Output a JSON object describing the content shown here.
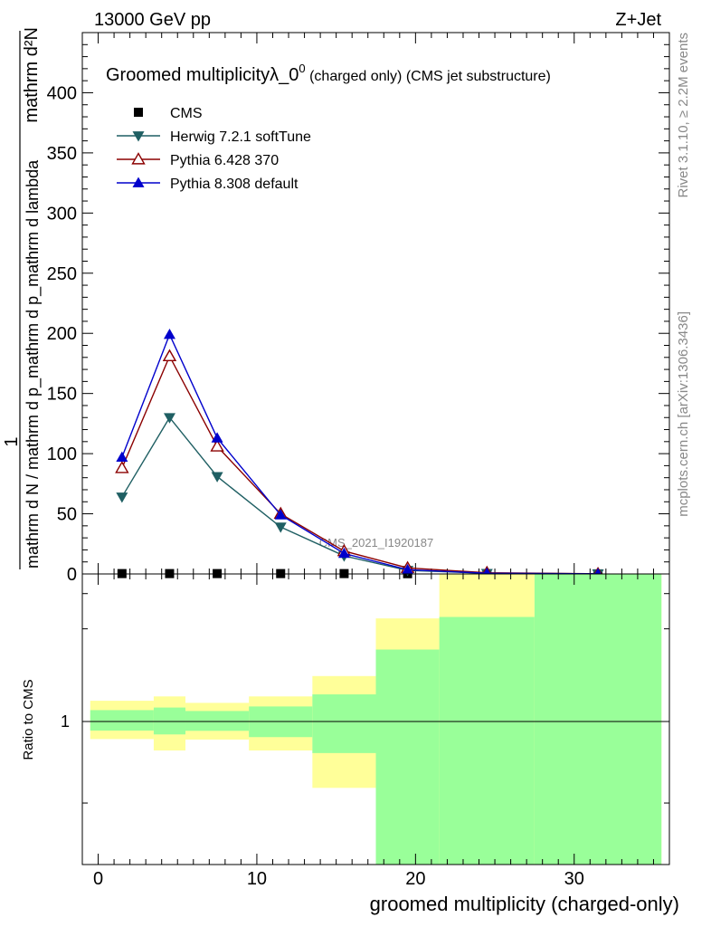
{
  "header": {
    "energy": "13000 GeV pp",
    "process": "Z+Jet"
  },
  "side_labels": {
    "rivet": "Rivet 3.1.10, ≥ 2.2M events",
    "mcplots": "mcplots.cern.ch [arXiv:1306.3436]"
  },
  "chart_data": [
    {
      "type": "line",
      "title": "Groomed multiplicityλ_0",
      "title_sup": "0",
      "title_suffix": " (charged only) (CMS jet substructure)",
      "watermark": "CMS_2021_I1920187",
      "ylabel_num": "1",
      "ylabel_den": "mathrm d N / mathrm d p_mathrm d p_mathrm d lambda",
      "ylabel_top": "mathrm d²N",
      "xlim": [
        -1,
        36
      ],
      "ylim": [
        0,
        450
      ],
      "yticks": [
        0,
        50,
        100,
        150,
        200,
        250,
        300,
        350,
        400
      ],
      "legend_position": "top-left",
      "x": [
        1.5,
        4.5,
        7.5,
        11.5,
        15.5,
        19.5,
        24.5,
        31.5
      ],
      "series": [
        {
          "name": "CMS",
          "marker": "square",
          "color": "#000000",
          "values": [
            0.3,
            0.3,
            0.3,
            0.3,
            0.3,
            0.2,
            0.1,
            0.1
          ]
        },
        {
          "name": "Herwig 7.2.1 softTune",
          "marker": "triangle-down",
          "color": "#1f5f63",
          "values": [
            64,
            130,
            81,
            39,
            15,
            3,
            0.5,
            0.1
          ]
        },
        {
          "name": "Pythia 6.428 370",
          "marker": "triangle-up-open",
          "color": "#8b0000",
          "values": [
            88,
            181,
            106,
            50,
            19,
            5,
            1,
            0.1
          ]
        },
        {
          "name": "Pythia 8.308 default",
          "marker": "triangle-up",
          "color": "#0000cc",
          "values": [
            97,
            199,
            113,
            49,
            17,
            3.5,
            0.6,
            0.1
          ]
        }
      ]
    },
    {
      "type": "area",
      "ylabel": "Ratio to CMS",
      "xlabel": "groomed multiplicity (charged-only)",
      "xlim": [
        -1,
        36
      ],
      "xticks": [
        0,
        10,
        20,
        30
      ],
      "ytick_label": "1",
      "bands": [
        {
          "x0": -0.5,
          "x1": 3.5,
          "yellow": [
            0.926,
            1.095
          ],
          "green": [
            0.961,
            1.051
          ]
        },
        {
          "x0": 3.5,
          "x1": 5.5,
          "yellow": [
            0.881,
            1.116
          ],
          "green": [
            0.945,
            1.063
          ]
        },
        {
          "x0": 5.5,
          "x1": 9.5,
          "yellow": [
            0.924,
            1.085
          ],
          "green": [
            0.96,
            1.047
          ]
        },
        {
          "x0": 9.5,
          "x1": 13.5,
          "yellow": [
            0.881,
            1.116
          ],
          "green": [
            0.934,
            1.068
          ]
        },
        {
          "x0": 13.5,
          "x1": 17.5,
          "yellow": [
            0.748,
            1.22
          ],
          "green": [
            0.871,
            1.126
          ]
        },
        {
          "x0": 17.5,
          "x1": 21.5,
          "yellow": [
            0.0,
            1.57
          ],
          "green": [
            0.0,
            1.37
          ]
        },
        {
          "x0": 21.5,
          "x1": 27.5,
          "yellow": [
            0.0,
            2.0
          ],
          "green": [
            0.0,
            1.58
          ]
        },
        {
          "x0": 27.5,
          "x1": 35.5,
          "yellow": [
            0.0,
            2.0
          ],
          "green": [
            0.0,
            2.0
          ]
        }
      ]
    }
  ]
}
